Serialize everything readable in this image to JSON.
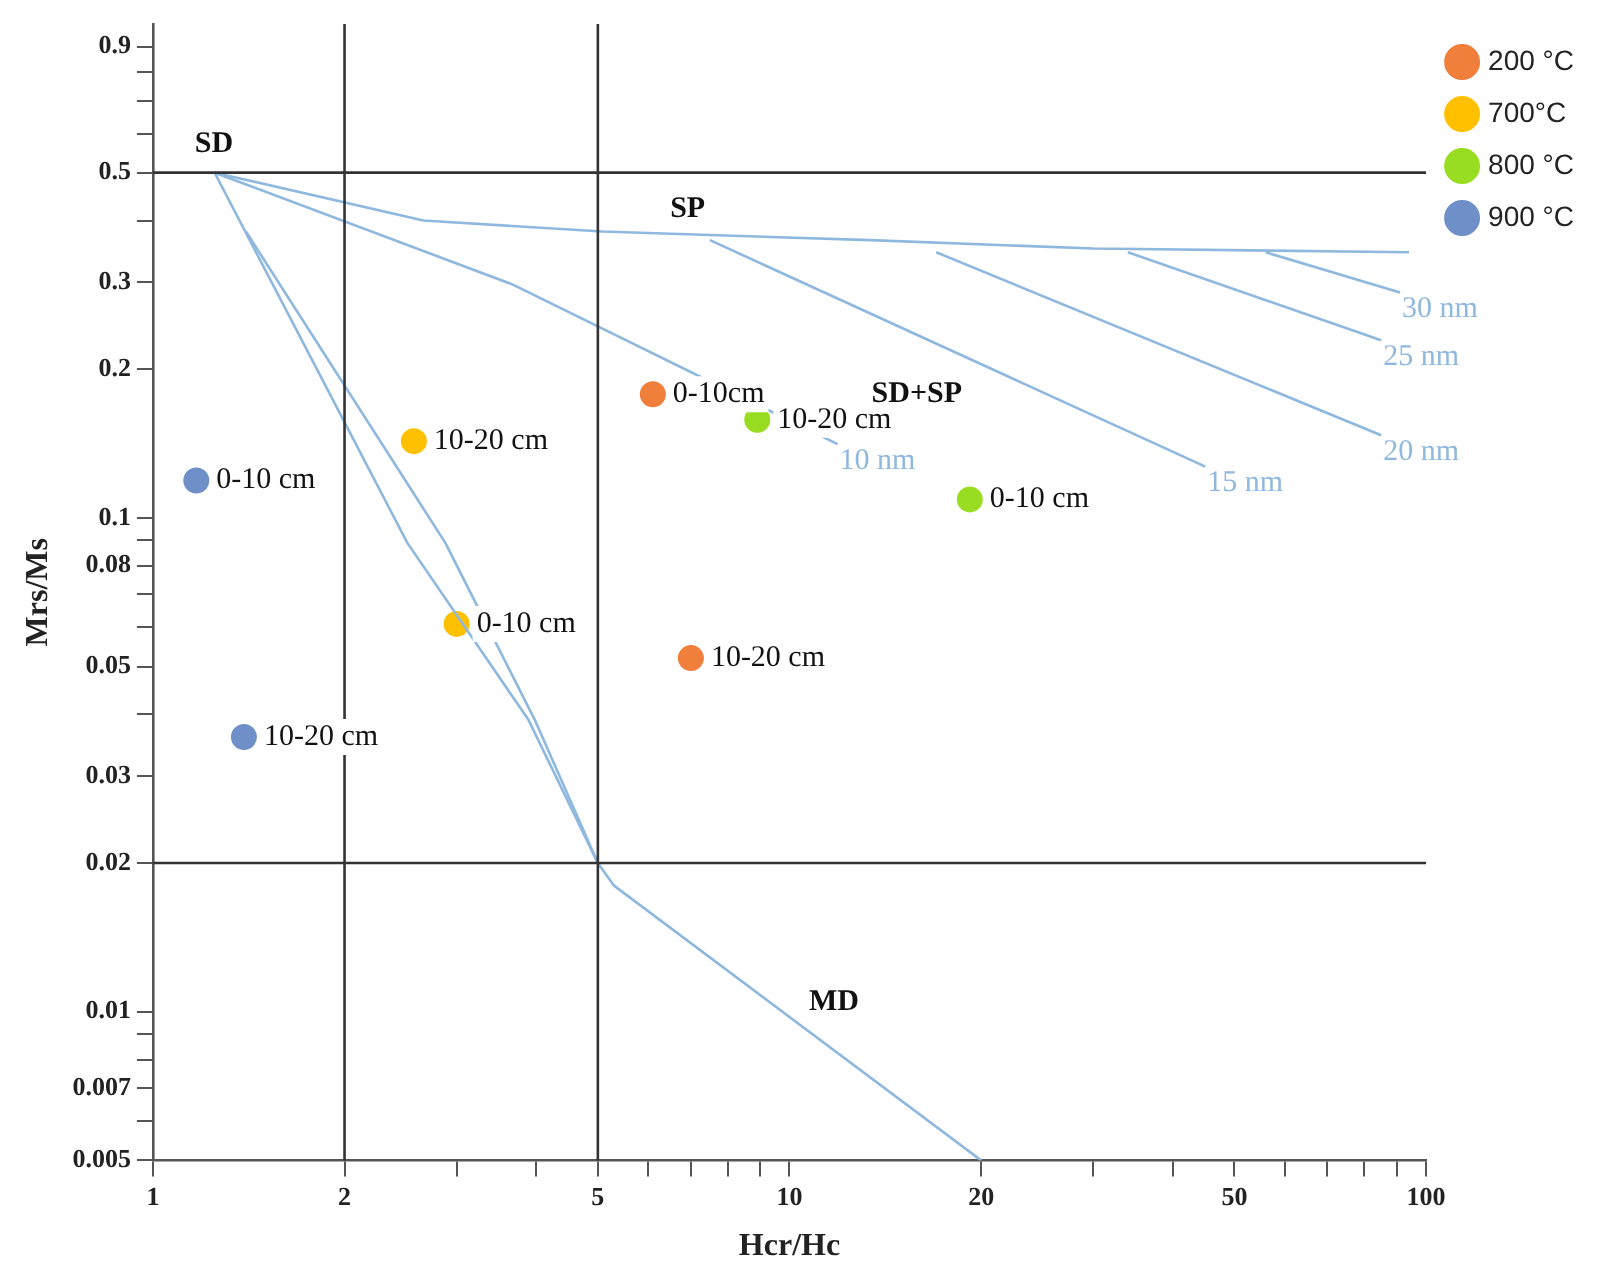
{
  "chart_data": {
    "type": "scatter",
    "xlabel": "Hcr/Hc",
    "ylabel": "Mrs/Ms",
    "log": "xy",
    "grid": false,
    "legend": "top right",
    "marker": "circle",
    "xlim": [
      1,
      100
    ],
    "ylim": [
      0.005,
      1
    ],
    "xticks": [
      1,
      2,
      {
        "value": 3,
        "label": null
      },
      {
        "value": 4,
        "label": null
      },
      5,
      {
        "value": 6,
        "label": null
      },
      {
        "value": 7,
        "label": null
      },
      {
        "value": 8,
        "label": null
      },
      {
        "value": 9,
        "label": null
      },
      10,
      20,
      {
        "value": 30,
        "label": null
      },
      {
        "value": 40,
        "label": null
      },
      50,
      {
        "value": 60,
        "label": null
      },
      {
        "value": 70,
        "label": null
      },
      {
        "value": 80,
        "label": null
      },
      {
        "value": 90,
        "label": null
      },
      100
    ],
    "yticks": [
      0.005,
      {
        "value": 0.006,
        "label": null
      },
      0.007,
      {
        "value": 0.008,
        "label": null
      },
      {
        "value": 0.009,
        "label": null
      },
      0.01,
      0.02,
      0.03,
      {
        "value": 0.04,
        "label": null
      },
      0.05,
      {
        "value": 0.06,
        "label": null
      },
      {
        "value": 0.07,
        "label": null
      },
      0.08,
      {
        "value": 0.09,
        "label": null
      },
      0.1,
      0.2,
      0.3,
      {
        "value": 0.4,
        "label": null
      },
      0.5,
      {
        "value": 0.6,
        "label": null
      },
      {
        "value": 0.7,
        "label": null
      },
      {
        "value": 0.8,
        "label": null
      },
      0.9
    ],
    "ref_lines": [
      {
        "axis": "y",
        "value": 0.5,
        "color": "#333333"
      },
      {
        "axis": "y",
        "value": 0.02,
        "color": "#333333"
      },
      {
        "axis": "x",
        "value": 2,
        "color": "#333333"
      },
      {
        "axis": "x",
        "value": 5,
        "color": "#333333"
      }
    ],
    "series": [
      {
        "type": "line",
        "marker": "none",
        "color": "#8fb8de",
        "x": [
          1.25,
          2.66,
          5.08,
          13.4,
          30,
          94
        ],
        "values": [
          0.5,
          0.4,
          0.38,
          0.365,
          0.351,
          0.345
        ]
      },
      {
        "type": "line",
        "marker": "none",
        "color": "#8fb8de",
        "x": [
          1.25,
          2.51,
          3.89,
          5,
          5.3,
          20
        ],
        "values": [
          0.5,
          0.089,
          0.039,
          0.02,
          0.018,
          0.005
        ]
      },
      {
        "type": "line",
        "marker": "none",
        "color": "#8fb8de",
        "x": [
          1.4,
          2.88,
          3.98,
          5
        ],
        "values": [
          0.38,
          0.089,
          0.039,
          0.02
        ]
      },
      {
        "type": "line",
        "marker": "none",
        "name": "10 nm",
        "color": "#8fb8de",
        "x": [
          1.25,
          3.67,
          11.9
        ],
        "values": [
          0.5,
          0.297,
          0.141
        ]
      },
      {
        "type": "line",
        "marker": "none",
        "name": "15 nm",
        "color": "#8fb8de",
        "x": [
          7.5,
          45
        ],
        "values": [
          0.365,
          0.127
        ]
      },
      {
        "type": "line",
        "marker": "none",
        "name": "20 nm",
        "color": "#8fb8de",
        "x": [
          17,
          85
        ],
        "values": [
          0.345,
          0.147
        ]
      },
      {
        "type": "line",
        "marker": "none",
        "name": "25 nm",
        "color": "#8fb8de",
        "x": [
          34,
          85
        ],
        "values": [
          0.345,
          0.229
        ]
      },
      {
        "type": "line",
        "marker": "none",
        "name": "30 nm",
        "color": "#8fb8de",
        "x": [
          56,
          91
        ],
        "values": [
          0.345,
          0.286
        ]
      },
      {
        "name": "200 °C",
        "color": "#f07f3c",
        "x": [
          6.1,
          7.0
        ],
        "values": [
          0.178,
          0.052
        ],
        "value_labels": [
          "0-10cm",
          "10-20 cm"
        ]
      },
      {
        "name": "700°C",
        "color": "#ffc000",
        "x": [
          2.57,
          3.0
        ],
        "values": [
          0.143,
          0.061
        ],
        "value_labels": [
          "10-20 cm",
          "0-10 cm"
        ]
      },
      {
        "name": "800 °C",
        "color": "#99dd22",
        "x": [
          8.9,
          19.2
        ],
        "values": [
          0.158,
          0.109
        ],
        "value_labels": [
          "10-20 cm",
          "0-10 cm"
        ]
      },
      {
        "name": "900 °C",
        "color": "#6f8fc8",
        "x": [
          1.17,
          1.39
        ],
        "values": [
          0.119,
          0.036
        ],
        "value_labels": [
          "0-10 cm",
          "10-20 cm"
        ]
      }
    ],
    "annotations": [
      "SD",
      "SP",
      "SD+SP",
      "MD"
    ]
  }
}
